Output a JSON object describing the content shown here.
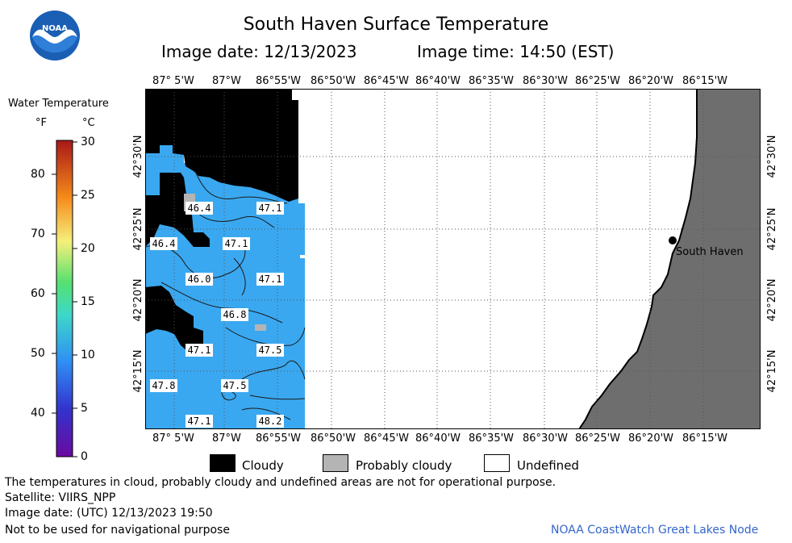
{
  "header": {
    "title": "South Haven Surface Temperature",
    "image_date": "Image date: 12/13/2023",
    "image_time": "Image time: 14:50 (EST)"
  },
  "logo": {
    "text": "NOAA"
  },
  "colorbar": {
    "title": "Water Temperature",
    "unit_f": "°F",
    "unit_c": "°C",
    "f_ticks": [
      "80",
      "70",
      "60",
      "50",
      "40"
    ],
    "c_ticks": [
      "30",
      "25",
      "20",
      "15",
      "10",
      "5",
      "0"
    ]
  },
  "axes": {
    "top_lon_labels": [
      "87° 5'W",
      "87°W",
      "86°55'W",
      "86°50'W",
      "86°45'W",
      "86°40'W",
      "86°35'W",
      "86°30'W",
      "86°25'W",
      "86°20'W",
      "86°15'W"
    ],
    "bottom_lon_labels": [
      "87° 5'W",
      "87°W",
      "86°55'W",
      "86°50'W",
      "86°45'W",
      "86°40'W",
      "86°35'W",
      "86°30'W",
      "86°25'W",
      "86°20'W",
      "86°15'W"
    ],
    "lat_labels": [
      "42°30'N",
      "42°25'N",
      "42°20'N",
      "42°15'N"
    ]
  },
  "map": {
    "colors": {
      "water": "#3aa8f0",
      "cloud": "#000000",
      "probably_cloudy": "#b4b4b4",
      "land": "#6e6e6e",
      "undefined": "#ffffff"
    },
    "temperature_labels": [
      {
        "value": "46.4"
      },
      {
        "value": "47.1"
      },
      {
        "value": "46.4"
      },
      {
        "value": "47.1"
      },
      {
        "value": "46.0"
      },
      {
        "value": "47.1"
      },
      {
        "value": "46.8"
      },
      {
        "value": "47.1"
      },
      {
        "value": "47.5"
      },
      {
        "value": "47.8"
      },
      {
        "value": "47.5"
      },
      {
        "value": "47.1"
      },
      {
        "value": "48.2"
      }
    ],
    "city": "South Haven"
  },
  "legend": {
    "cloudy": "Cloudy",
    "probably_cloudy": "Probably cloudy",
    "undefined": "Undefined"
  },
  "footer": {
    "disclaimer": "The temperatures in cloud, probably cloudy and undefined areas are not for operational purpose.",
    "satellite": "Satellite: VIIRS_NPP",
    "utc_date": "Image date: (UTC) 12/13/2023  19:50",
    "nav_note": "Not to be used for navigational purpose",
    "credit": "NOAA CoastWatch Great Lakes Node"
  }
}
